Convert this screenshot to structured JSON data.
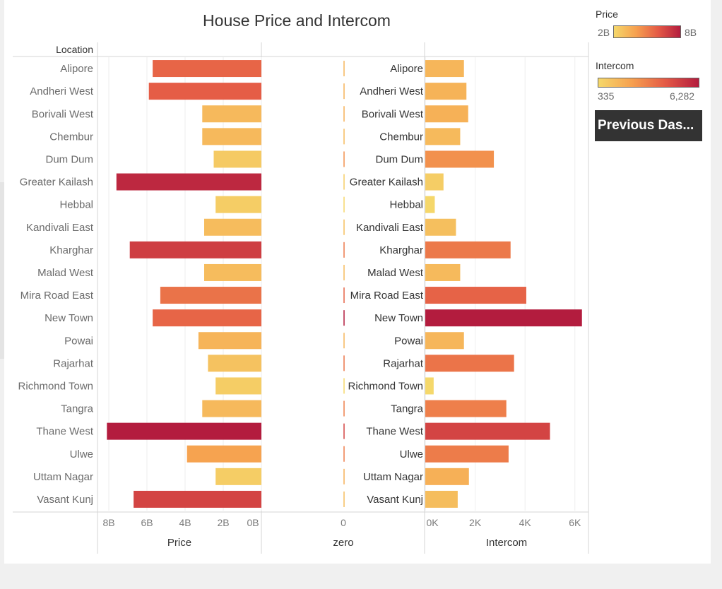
{
  "chart_title": "House Price and Intercom",
  "header": {
    "location_label": "Location"
  },
  "legend": {
    "price": {
      "title": "Price",
      "min_label": "2B",
      "max_label": "8B"
    },
    "intercom": {
      "title": "Intercom",
      "min_label": "335",
      "max_label": "6,282"
    },
    "colors": [
      "#f5d86b",
      "#f6a04f",
      "#e45a46",
      "#b31c3e"
    ]
  },
  "button": {
    "label": "Previous Das..."
  },
  "axes": {
    "price": {
      "title": "Price",
      "ticks": [
        "8B",
        "6B",
        "4B",
        "2B",
        "0B"
      ],
      "range": [
        0,
        8.2
      ]
    },
    "zero": {
      "title": "zero",
      "ticks": [
        "0"
      ]
    },
    "intercom": {
      "title": "Intercom",
      "ticks": [
        "0K",
        "2K",
        "4K",
        "6K"
      ],
      "range": [
        0,
        6500
      ]
    }
  },
  "chart_data": {
    "type": "bar",
    "title": "House Price and Intercom",
    "categories": [
      "Alipore",
      "Andheri West",
      "Borivali West",
      "Chembur",
      "Dum Dum",
      "Greater Kailash",
      "Hebbal",
      "Kandivali East",
      "Kharghar",
      "Malad West",
      "Mira Road East",
      "New Town",
      "Powai",
      "Rajarhat",
      "Richmond Town",
      "Tangra",
      "Thane West",
      "Ulwe",
      "Uttam Nagar",
      "Vasant Kunj"
    ],
    "series": [
      {
        "name": "Price",
        "unit": "B",
        "values": [
          5.7,
          5.9,
          3.1,
          3.1,
          2.5,
          7.6,
          2.4,
          3.0,
          6.9,
          3.0,
          5.3,
          5.7,
          3.3,
          2.8,
          2.4,
          3.1,
          8.1,
          3.9,
          2.4,
          6.7
        ]
      },
      {
        "name": "Intercom",
        "values": [
          1550,
          1650,
          1720,
          1400,
          2750,
          730,
          380,
          1230,
          3420,
          1400,
          4050,
          6282,
          1550,
          3560,
          335,
          3250,
          5000,
          3340,
          1750,
          1300
        ]
      }
    ],
    "xlabel_left": "Price",
    "xlabel_middle": "zero",
    "xlabel_right": "Intercom",
    "ylabel": "Location",
    "xlim_price": [
      0,
      8.2
    ],
    "xlim_intercom": [
      0,
      6500
    ],
    "color_range_price": [
      2,
      8
    ],
    "color_range_intercom": [
      335,
      6282
    ]
  }
}
